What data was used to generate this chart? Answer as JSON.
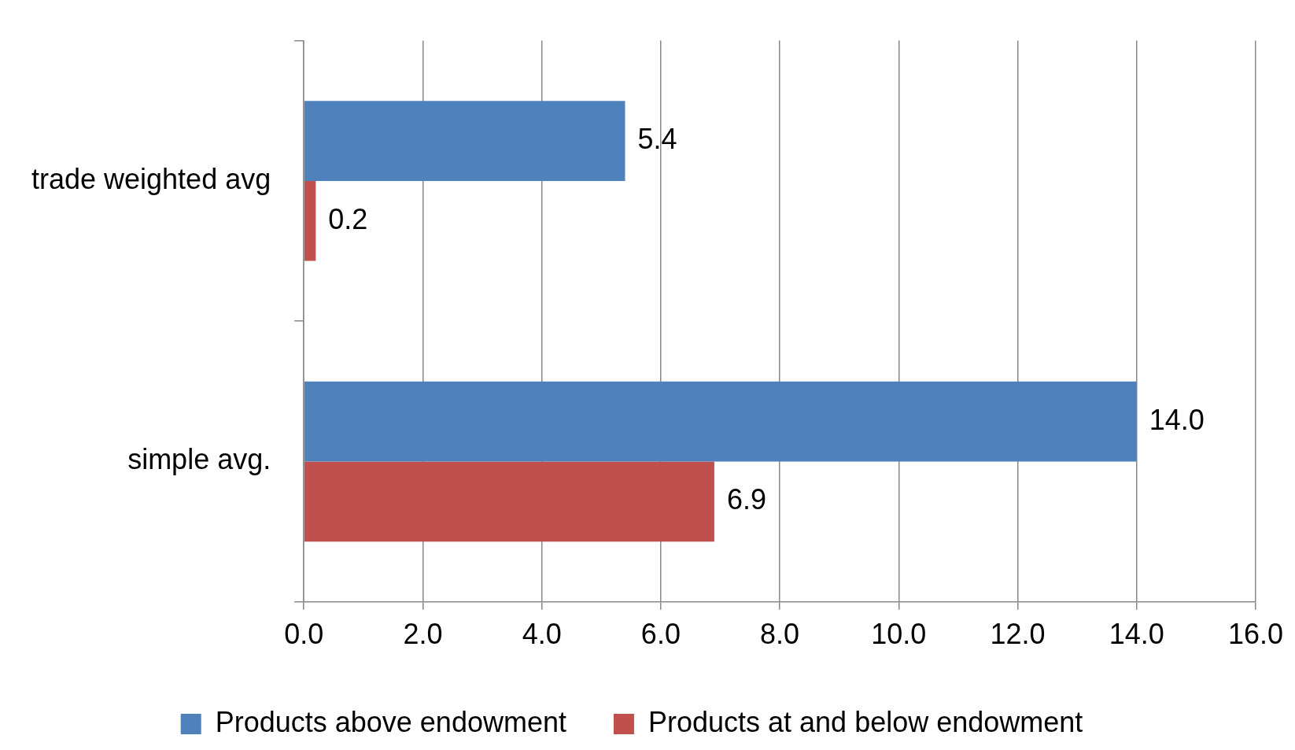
{
  "chart_data": {
    "type": "bar",
    "orientation": "horizontal",
    "categories": [
      "trade weighted avg",
      "simple avg."
    ],
    "series": [
      {
        "name": "Products above endowment",
        "color": "#4f81bd",
        "values": [
          5.4,
          14.0
        ],
        "value_labels": [
          "5.4",
          "14.0"
        ]
      },
      {
        "name": "Products at and below endowment",
        "color": "#c0504d",
        "values": [
          0.2,
          6.9
        ],
        "value_labels": [
          "0.2",
          "6.9"
        ]
      }
    ],
    "xlim": [
      0,
      16
    ],
    "xticks": [
      {
        "value": 0,
        "label": "0.0"
      },
      {
        "value": 2,
        "label": "2.0"
      },
      {
        "value": 4,
        "label": "4.0"
      },
      {
        "value": 6,
        "label": "6.0"
      },
      {
        "value": 8,
        "label": "8.0"
      },
      {
        "value": 10,
        "label": "10.0"
      },
      {
        "value": 12,
        "label": "12.0"
      },
      {
        "value": 14,
        "label": "14.0"
      },
      {
        "value": 16,
        "label": "16.0"
      }
    ],
    "grid": "x",
    "legend": "bottom"
  }
}
